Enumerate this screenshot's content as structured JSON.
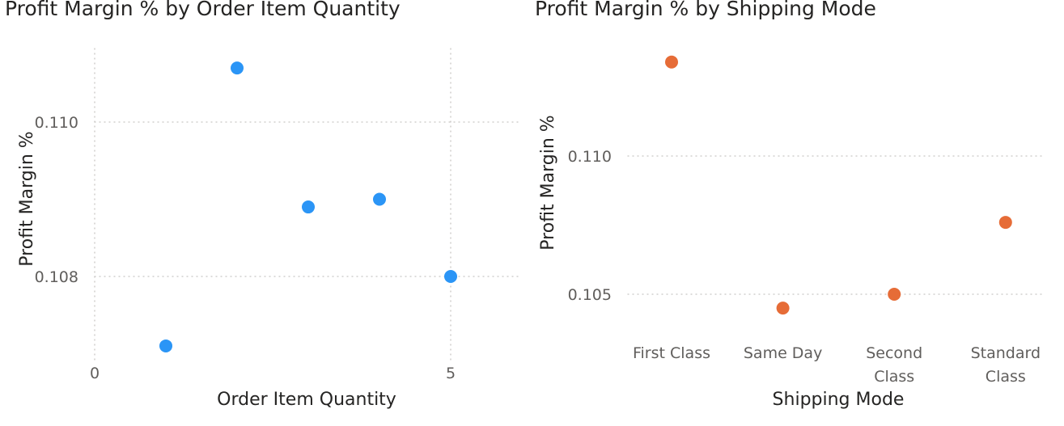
{
  "chart_data": [
    {
      "type": "scatter",
      "title": "Profit Margin % by Order Item Quantity",
      "xlabel": "Order Item Quantity",
      "ylabel": "Profit Margin %",
      "x": [
        1,
        2,
        3,
        4,
        5
      ],
      "y": [
        0.1071,
        0.1107,
        0.1089,
        0.109,
        0.108
      ],
      "xlim": [
        0,
        6
      ],
      "ylim": [
        0.1067,
        0.1114
      ],
      "x_ticks": [
        0,
        5
      ],
      "y_ticks": [
        0.108,
        0.11
      ],
      "x_tick_labels": [
        "0",
        "5"
      ],
      "y_tick_labels": [
        "0.108",
        "0.110"
      ],
      "grid": true,
      "color": "#2B95F6"
    },
    {
      "type": "scatter",
      "title": "Profit Margin % by Shipping Mode",
      "xlabel": "Shipping Mode",
      "ylabel": "Profit Margin %",
      "categories": [
        "First Class",
        "Same Day",
        "Second Class",
        "Standard Class"
      ],
      "category_lines": [
        [
          "First Class"
        ],
        [
          "Same Day"
        ],
        [
          "Second",
          "Class"
        ],
        [
          "Standard",
          "Class"
        ]
      ],
      "y": [
        0.1134,
        0.1045,
        0.105,
        0.1076
      ],
      "ylim": [
        0.1026,
        0.115
      ],
      "y_ticks": [
        0.105,
        0.11
      ],
      "y_tick_labels": [
        "0.105",
        "0.110"
      ],
      "grid": true,
      "color": "#E66C37"
    }
  ]
}
